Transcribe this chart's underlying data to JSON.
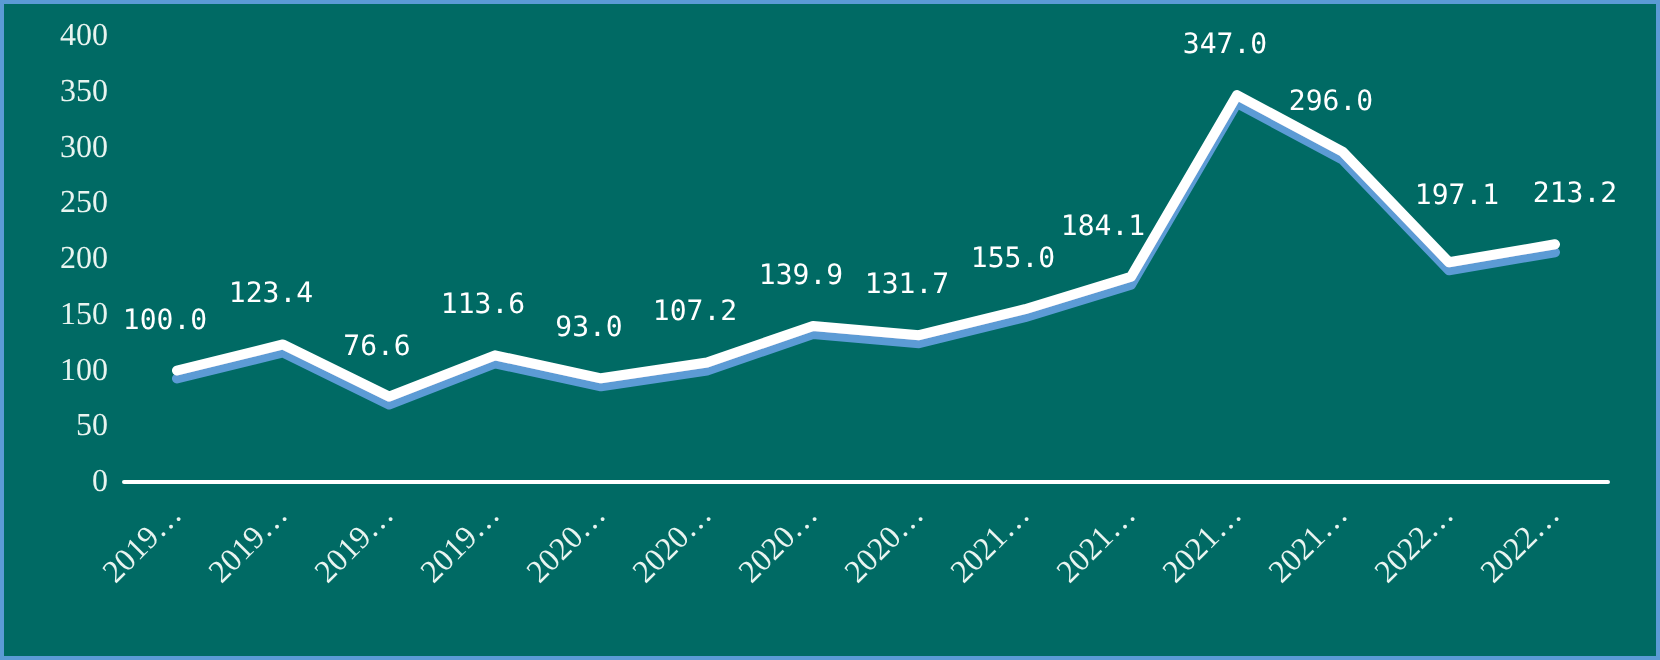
{
  "chart_data": {
    "type": "line",
    "categories": [
      "2019…",
      "2019…",
      "2019…",
      "2019…",
      "2020…",
      "2020…",
      "2020…",
      "2020…",
      "2021…",
      "2021…",
      "2021…",
      "2021…",
      "2022…",
      "2022…"
    ],
    "series": [
      {
        "color": "#ffffff",
        "values": [
          100.0,
          123.4,
          76.6,
          113.6,
          93.0,
          107.2,
          139.9,
          131.7,
          155.0,
          184.1,
          347.0,
          296.0,
          197.1,
          213.2
        ]
      }
    ],
    "ylim": [
      0,
      400
    ],
    "yticks": [
      0,
      50,
      100,
      150,
      200,
      250,
      300,
      350,
      400
    ],
    "grid": false,
    "marker": "none",
    "line_style": "solid",
    "value_labels": [
      "100.0",
      "123.4",
      "76.6",
      "113.6",
      "93.0",
      "107.2",
      "139.9",
      "131.7",
      "155.0",
      "184.1",
      "347.0",
      "296.0",
      "197.1",
      "213.2"
    ]
  }
}
